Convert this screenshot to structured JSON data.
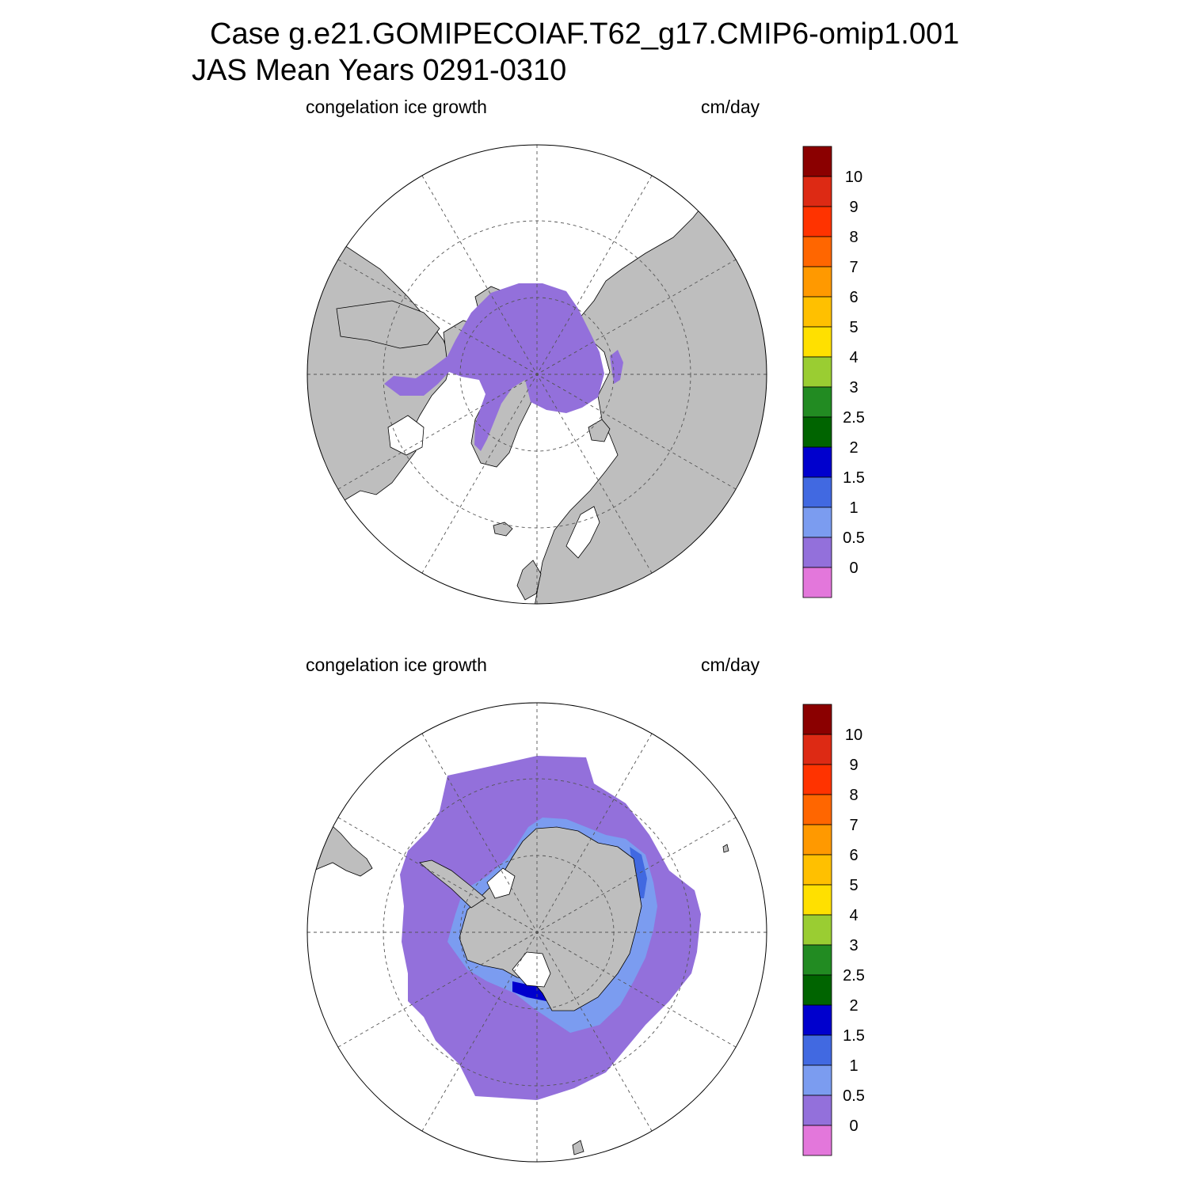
{
  "header": {
    "line1": "Case g.e21.GOMIPECOIAF.T62_g17.CMIP6-omip1.001",
    "line2": "JAS Mean   Years 0291-0310"
  },
  "colors": {
    "land": "#bebebe",
    "ocean_no_data": "#ffffff",
    "graticule": "#555555",
    "outline": "#000000"
  },
  "colorbar": {
    "labels": [
      "0",
      "0.5",
      "1",
      "1.5",
      "2",
      "2.5",
      "3",
      "4",
      "5",
      "6",
      "7",
      "8",
      "9",
      "10"
    ],
    "colors": [
      "#e377db",
      "#9370db",
      "#7b9cf0",
      "#4169e1",
      "#0000cd",
      "#006400",
      "#228b22",
      "#9acd32",
      "#ffe000",
      "#ffc000",
      "#ff9900",
      "#ff6600",
      "#ff3300",
      "#dd2a14",
      "#8b0000"
    ]
  },
  "panels": [
    {
      "hemisphere": "north",
      "left_label": "congelation ice growth",
      "right_label": "cm/day"
    },
    {
      "hemisphere": "south",
      "left_label": "congelation ice growth",
      "right_label": "cm/day"
    }
  ]
}
